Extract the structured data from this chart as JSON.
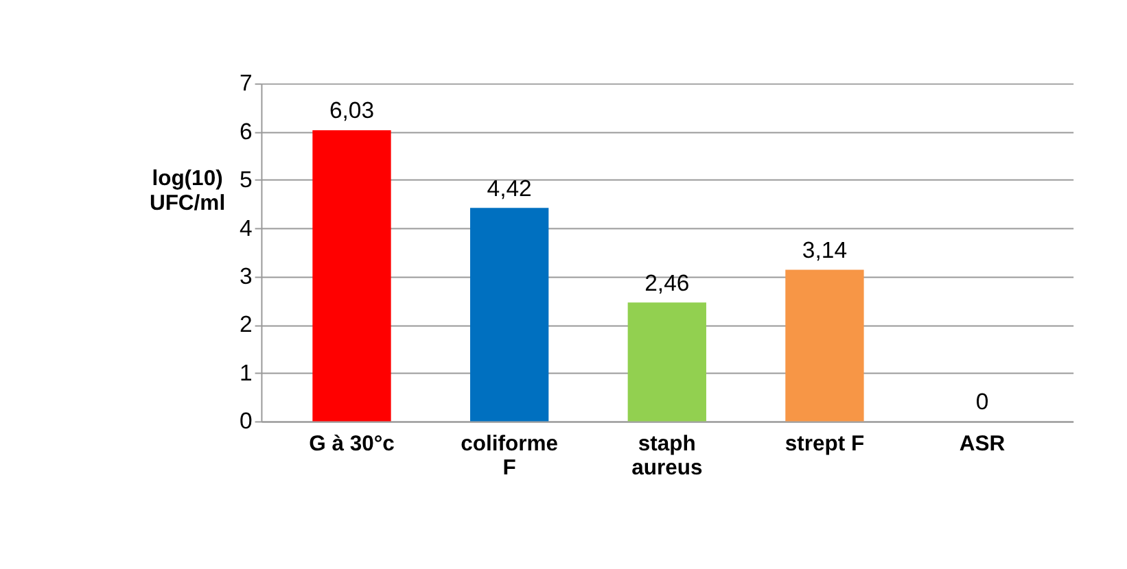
{
  "chart_data": {
    "type": "bar",
    "ylabel": "log(10) UFC/ml",
    "categories": [
      "G à 30°c",
      "coliforme F",
      "staph aureus",
      "strept F",
      "ASR"
    ],
    "values": [
      6.03,
      4.42,
      2.46,
      3.14,
      0
    ],
    "colors": [
      "#ff0000",
      "#0070c0",
      "#92d050",
      "#f79646",
      "#7030a0"
    ],
    "value_labels": [
      "6,03",
      "4,42",
      "2,46",
      "3,14",
      "0"
    ],
    "ylim": [
      0,
      7
    ],
    "yticks": [
      0,
      1,
      2,
      3,
      4,
      5,
      6,
      7
    ],
    "grid": "y"
  }
}
